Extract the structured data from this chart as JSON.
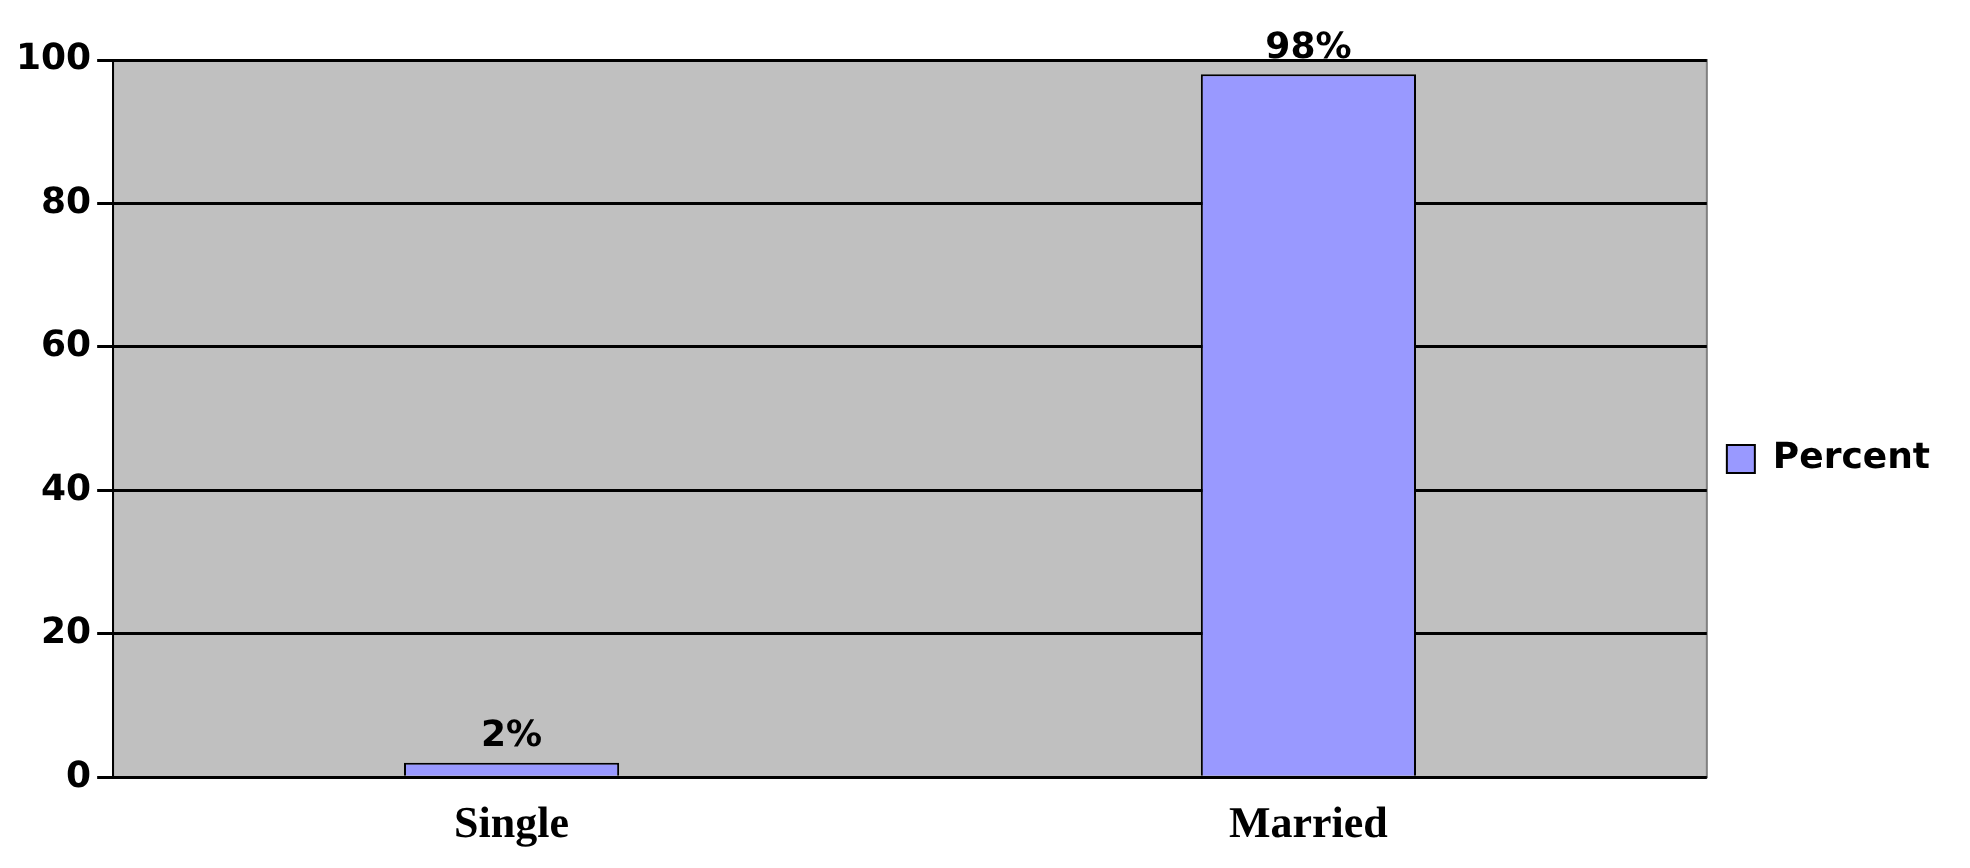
{
  "chart_data": {
    "type": "bar",
    "categories": [
      "Single",
      "Married"
    ],
    "series": [
      {
        "name": "Percent",
        "color": "#9999ff",
        "values": [
          2,
          98
        ],
        "value_labels": [
          "2%",
          "98%"
        ]
      }
    ],
    "ylim": [
      0,
      100
    ],
    "yticks": [
      0,
      20,
      40,
      60,
      80,
      100
    ],
    "grid": "y",
    "legend": "right"
  }
}
